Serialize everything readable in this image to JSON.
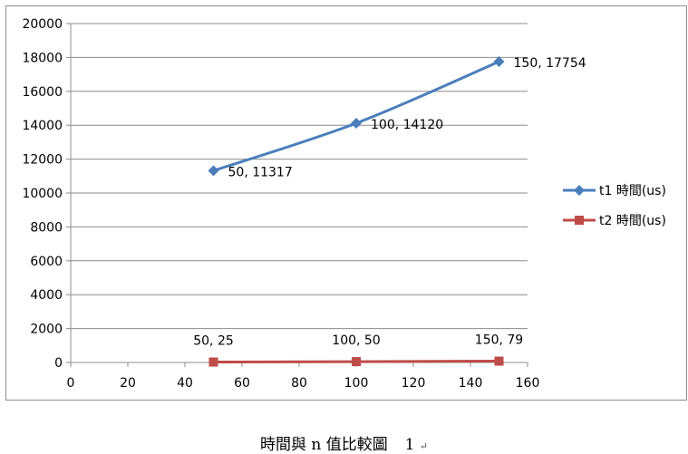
{
  "chart_data": {
    "type": "line",
    "title": "",
    "xlabel": "",
    "ylabel": "",
    "xlim": [
      0,
      160
    ],
    "ylim": [
      0,
      20000
    ],
    "xticks": [
      0,
      20,
      40,
      60,
      80,
      100,
      120,
      140,
      160
    ],
    "yticks": [
      0,
      2000,
      4000,
      6000,
      8000,
      10000,
      12000,
      14000,
      16000,
      18000,
      20000
    ],
    "grid": "horizontal",
    "legend_position": "right",
    "series": [
      {
        "name": "t1 時間(us)",
        "color": "#4a7ebb",
        "marker": "diamond",
        "smooth": true,
        "x": [
          50,
          100,
          150
        ],
        "y": [
          11317,
          14120,
          17754
        ],
        "labels": [
          "50, 11317",
          "100, 14120",
          "150, 17754"
        ]
      },
      {
        "name": "t2 時間(us)",
        "color": "#be4b48",
        "marker": "square",
        "smooth": true,
        "x": [
          50,
          100,
          150
        ],
        "y": [
          25,
          50,
          79
        ],
        "labels": [
          "50, 25",
          "100, 50",
          "150, 79"
        ]
      }
    ]
  },
  "caption": {
    "text": "時間與 n 值比較圖",
    "number": "1",
    "para_mark": "↵"
  }
}
